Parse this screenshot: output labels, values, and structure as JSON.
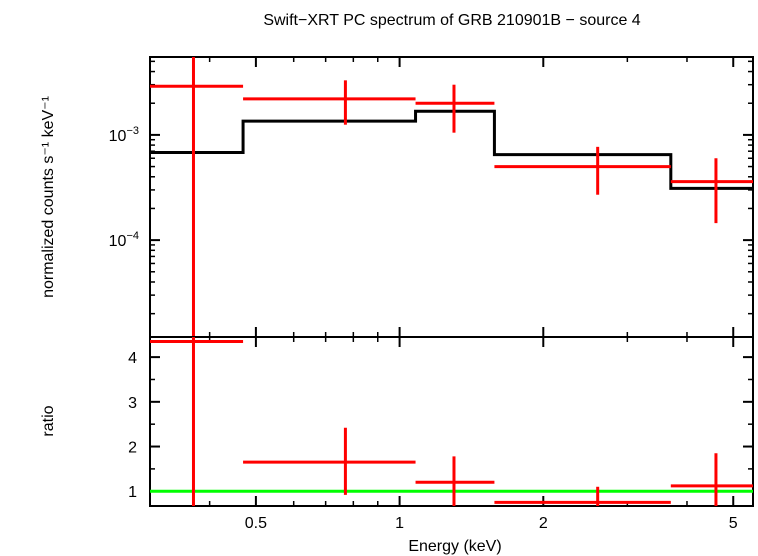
{
  "chart_data": {
    "type": "line",
    "title": "Swift−XRT PC spectrum of GRB 210901B − source 4",
    "xlabel": "Energy (keV)",
    "x_scale": "log",
    "xlim": [
      0.3,
      5.5
    ],
    "x_ticks": [
      {
        "value": 0.5,
        "label": "0.5"
      },
      {
        "value": 1,
        "label": "1"
      },
      {
        "value": 2,
        "label": "2"
      },
      {
        "value": 5,
        "label": "5"
      }
    ],
    "colors": {
      "data": "#ff0000",
      "model": "#000000",
      "unity": "#00ff00"
    },
    "panels": [
      {
        "name": "spectrum",
        "ylabel": "normalized counts s⁻¹ keV⁻¹",
        "y_scale": "log",
        "ylim": [
          1.2e-05,
          0.0055
        ],
        "y_ticks": [
          {
            "value": 0.001,
            "base": "10",
            "exp": "−3"
          },
          {
            "value": 0.0001,
            "base": "10",
            "exp": "−4"
          }
        ],
        "data": [
          {
            "x": 0.37,
            "xlo": 0.3,
            "xhi": 0.47,
            "y": 0.0029,
            "ylo": 4.5e-06,
            "yhi": 0.0055
          },
          {
            "x": 0.77,
            "xlo": 0.47,
            "xhi": 1.08,
            "y": 0.0022,
            "ylo": 0.00125,
            "yhi": 0.0033
          },
          {
            "x": 1.3,
            "xlo": 1.08,
            "xhi": 1.58,
            "y": 0.002,
            "ylo": 0.00105,
            "yhi": 0.003
          },
          {
            "x": 2.6,
            "xlo": 1.58,
            "xhi": 3.7,
            "y": 0.0005,
            "ylo": 0.00027,
            "yhi": 0.00077
          },
          {
            "x": 4.6,
            "xlo": 3.7,
            "xhi": 5.5,
            "y": 0.00036,
            "ylo": 0.000145,
            "yhi": 0.0006
          }
        ],
        "model": [
          {
            "xlo": 0.3,
            "xhi": 0.47,
            "y": 0.00068
          },
          {
            "xlo": 0.47,
            "xhi": 1.08,
            "y": 0.00135
          },
          {
            "xlo": 1.08,
            "xhi": 1.58,
            "y": 0.00168
          },
          {
            "xlo": 1.58,
            "xhi": 3.7,
            "y": 0.00065
          },
          {
            "xlo": 3.7,
            "xhi": 5.5,
            "y": 0.00031
          }
        ]
      },
      {
        "name": "ratio",
        "ylabel": "ratio",
        "y_scale": "linear",
        "ylim": [
          0.67,
          4.45
        ],
        "y_ticks": [
          {
            "value": 1,
            "label": "1"
          },
          {
            "value": 2,
            "label": "2"
          },
          {
            "value": 3,
            "label": "3"
          },
          {
            "value": 4,
            "label": "4"
          }
        ],
        "unity_line": 1,
        "data": [
          {
            "x": 0.37,
            "xlo": 0.3,
            "xhi": 0.47,
            "y": 4.35,
            "ylo": 0.67,
            "yhi": 4.45
          },
          {
            "x": 0.77,
            "xlo": 0.47,
            "xhi": 1.08,
            "y": 1.65,
            "ylo": 0.92,
            "yhi": 2.42
          },
          {
            "x": 1.3,
            "xlo": 1.08,
            "xhi": 1.58,
            "y": 1.2,
            "ylo": 0.63,
            "yhi": 1.78
          },
          {
            "x": 2.6,
            "xlo": 1.58,
            "xhi": 3.7,
            "y": 0.75,
            "ylo": 0.4,
            "yhi": 1.1
          },
          {
            "x": 4.6,
            "xlo": 3.7,
            "xhi": 5.5,
            "y": 1.12,
            "ylo": 0.45,
            "yhi": 1.85
          }
        ]
      }
    ]
  }
}
